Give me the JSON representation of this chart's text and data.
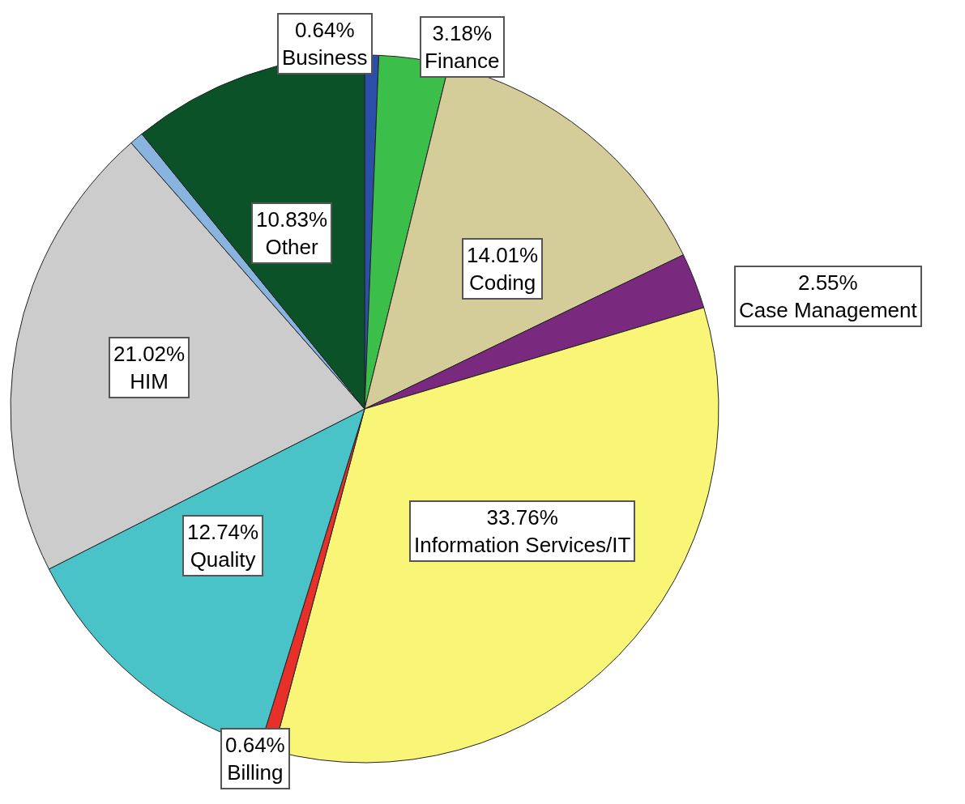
{
  "chart_data": {
    "type": "pie",
    "categories": [
      "Business",
      "Finance",
      "Coding",
      "Case Management",
      "Information Services/IT",
      "Billing",
      "Quality",
      "HIM",
      null,
      "Other"
    ],
    "values": [
      0.64,
      3.18,
      14.01,
      2.55,
      33.76,
      0.64,
      12.74,
      21.02,
      0.63,
      10.83
    ],
    "value_labels": [
      "0.64%",
      "3.18%",
      "14.01%",
      "2.55%",
      "33.76%",
      "0.64%",
      "12.74%",
      "21.02%",
      null,
      "10.83%"
    ],
    "colors": [
      "#2b4fa8",
      "#3cbf4a",
      "#d4cd9a",
      "#7a2a7e",
      "#f8f577",
      "#e8302a",
      "#4ac3c8",
      "#cccccc",
      "#8ab4e0",
      "#0b5229"
    ],
    "legend": false
  }
}
